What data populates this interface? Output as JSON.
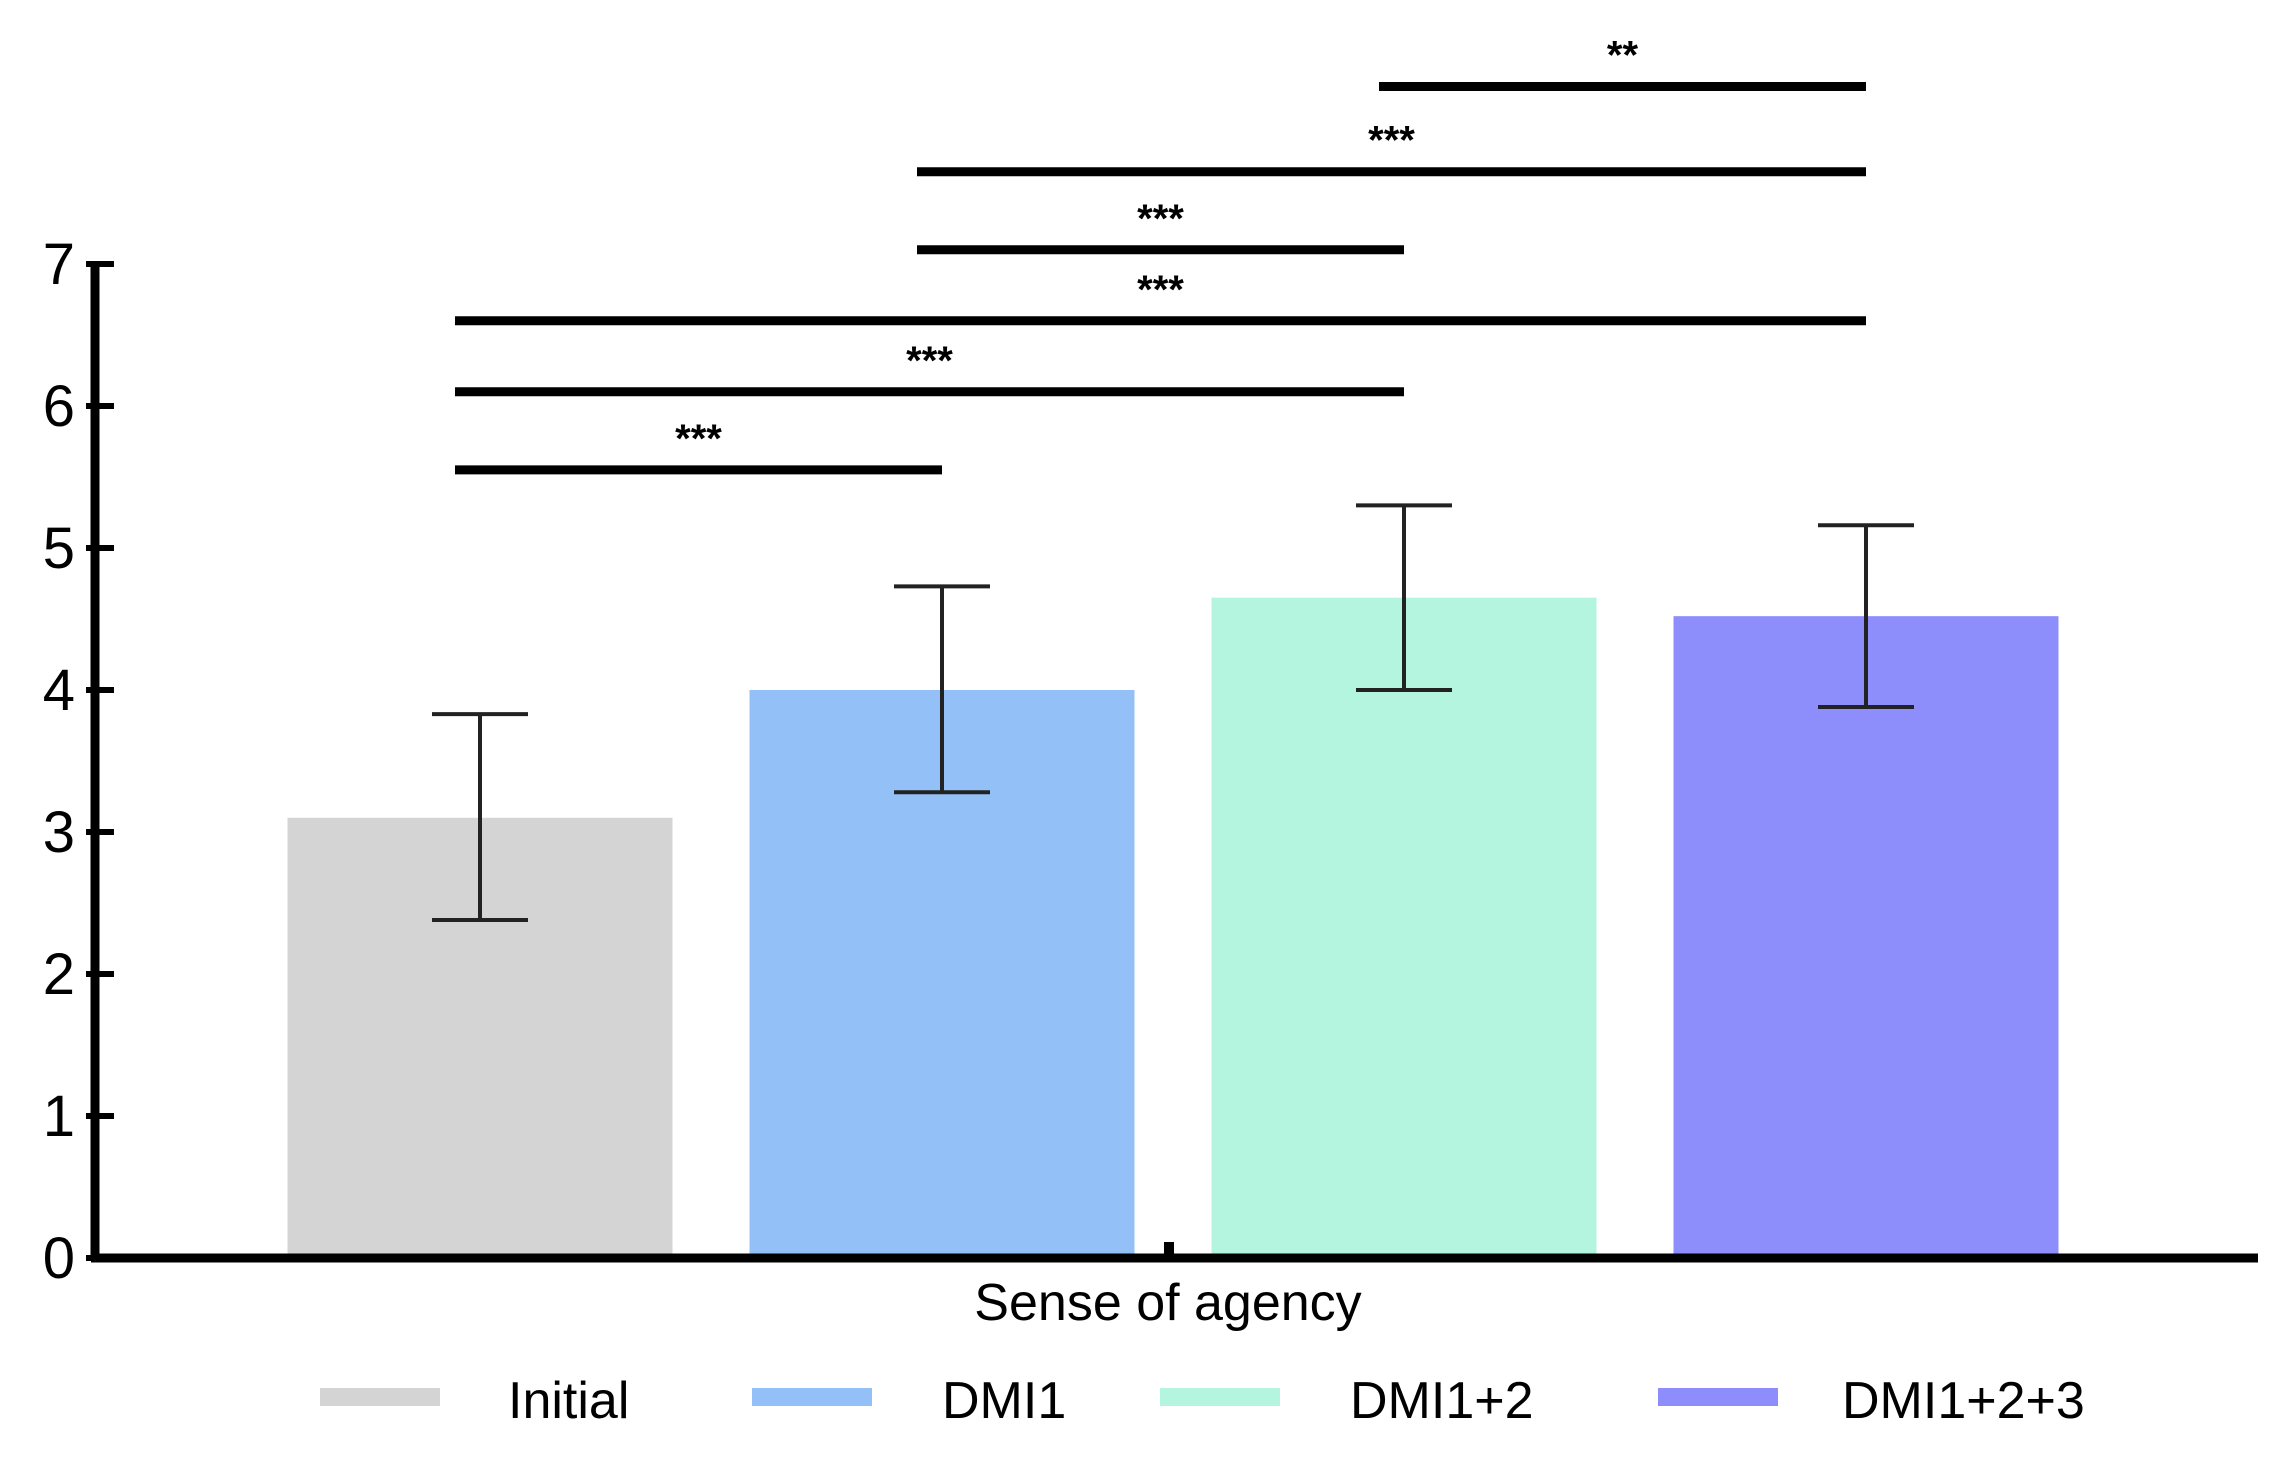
{
  "chart_data": {
    "type": "bar",
    "title": "",
    "xlabel": "Sense of agency",
    "ylabel": "",
    "ylim": [
      0,
      7
    ],
    "yticks": [
      0,
      1,
      2,
      3,
      4,
      5,
      6,
      7
    ],
    "grid": false,
    "legend_position": "bottom",
    "categories": [
      "Initial",
      "DMI1",
      "DMI1+2",
      "DMI1+2+3"
    ],
    "values": [
      3.1,
      4.0,
      4.65,
      4.52
    ],
    "error_low": [
      2.38,
      3.28,
      4.0,
      3.88
    ],
    "error_high": [
      3.83,
      4.73,
      5.3,
      5.16
    ],
    "colors": [
      "#d4d4d4",
      "#94c0f8",
      "#b4f5df",
      "#8e8dfc"
    ],
    "significance": [
      {
        "from": 0,
        "to": 1,
        "y": 5.55,
        "label": "***"
      },
      {
        "from": 0,
        "to": 2,
        "y": 6.1,
        "label": "***"
      },
      {
        "from": 0,
        "to": 3,
        "y": 6.6,
        "label": "***"
      },
      {
        "from": 1,
        "to": 2,
        "y": 7.1,
        "label": "***"
      },
      {
        "from": 1,
        "to": 3,
        "y": 7.65,
        "label": "***"
      },
      {
        "from": 2,
        "to": 3,
        "y": 8.25,
        "label": "**"
      }
    ]
  }
}
